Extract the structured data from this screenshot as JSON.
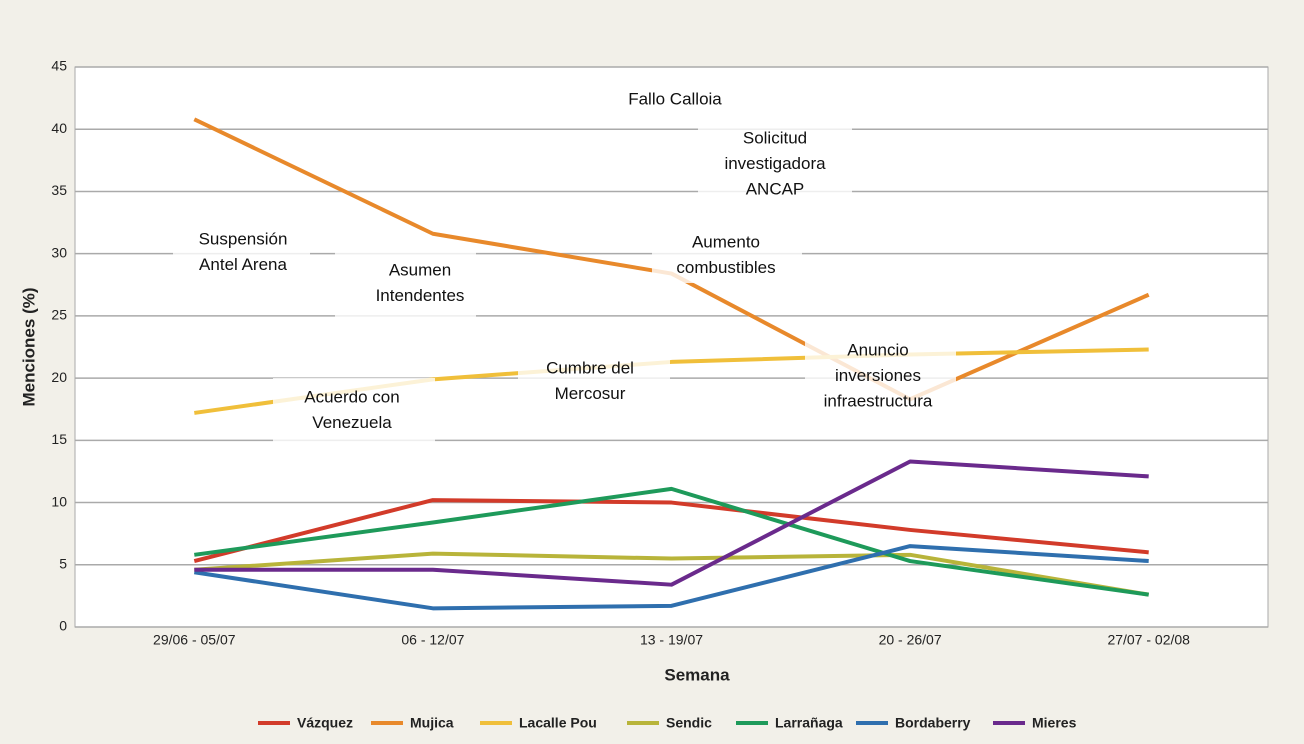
{
  "chart_data": {
    "type": "line",
    "x_label": "Semana",
    "y_label": "Menciones (%)",
    "categories": [
      "29/06 - 05/07",
      "06 - 12/07",
      "13 - 19/07",
      "20 - 26/07",
      "27/07 - 02/08"
    ],
    "ylim": [
      0,
      45
    ],
    "yticks": [
      0,
      5,
      10,
      15,
      20,
      25,
      30,
      35,
      40,
      45
    ],
    "grid": true,
    "legend": "bottom",
    "series": [
      {
        "name": "Vázquez",
        "color": "#d23b2a",
        "values": [
          5.3,
          10.2,
          10.0,
          7.8,
          6.0
        ]
      },
      {
        "name": "Mujica",
        "color": "#e8892b",
        "values": [
          40.8,
          31.6,
          28.4,
          18.3,
          26.7
        ]
      },
      {
        "name": "Lacalle Pou",
        "color": "#f0bf3a",
        "values": [
          17.2,
          19.9,
          21.3,
          21.9,
          22.3
        ]
      },
      {
        "name": "Sendic",
        "color": "#b8b43a",
        "values": [
          4.6,
          5.9,
          5.5,
          5.8,
          2.6
        ]
      },
      {
        "name": "Larrañaga",
        "color": "#1e9a5a",
        "values": [
          5.8,
          8.4,
          11.1,
          5.3,
          2.6
        ]
      },
      {
        "name": "Bordaberry",
        "color": "#2f6fae",
        "values": [
          4.4,
          1.5,
          1.7,
          6.5,
          5.3
        ]
      },
      {
        "name": "Mieres",
        "color": "#6a2a8c",
        "values": [
          4.6,
          4.6,
          3.4,
          13.3,
          12.1
        ]
      }
    ],
    "annotations": [
      {
        "lines": [
          "Suspensión",
          "Antel Arena"
        ]
      },
      {
        "lines": [
          "Asumen",
          "Intendentes"
        ]
      },
      {
        "lines": [
          "Acuerdo con",
          "Venezuela"
        ]
      },
      {
        "lines": [
          "Cumbre del",
          "Mercosur"
        ]
      },
      {
        "lines": [
          "Fallo Calloia"
        ]
      },
      {
        "lines": [
          "Solicitud",
          "investigadora",
          "ANCAP"
        ]
      },
      {
        "lines": [
          "Aumento",
          "combustibles"
        ]
      },
      {
        "lines": [
          "Anuncio",
          "inversiones",
          "infraestructura"
        ]
      }
    ]
  }
}
